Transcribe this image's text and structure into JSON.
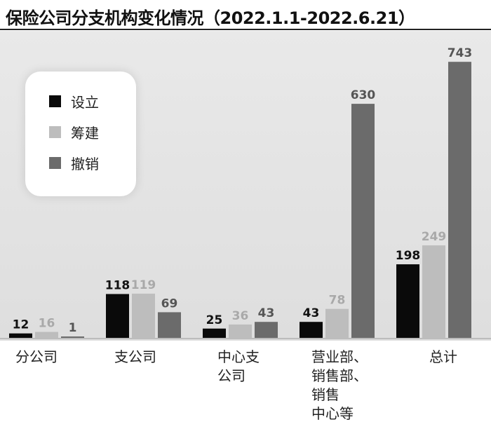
{
  "title": "保险公司分支机构变化情况（2022.1.1-2022.6.21）",
  "colors": {
    "设立": "#0a0a0a",
    "筹建": "#bdbdbd",
    "撤销": "#6b6b6b"
  },
  "legend": {
    "items": [
      {
        "label": "设立",
        "color": "#0a0a0a"
      },
      {
        "label": "筹建",
        "color": "#bdbdbd"
      },
      {
        "label": "撤销",
        "color": "#6b6b6b"
      }
    ]
  },
  "chart_data": {
    "type": "bar",
    "title": "保险公司分支机构变化情况（2022.1.1-2022.6.21）",
    "categories": [
      "分公司",
      "支公司",
      "中心支\n公司",
      "营业部、\n销售部、\n销售\n中心等",
      "总计"
    ],
    "series": [
      {
        "name": "设立",
        "values": [
          12,
          118,
          25,
          43,
          198
        ]
      },
      {
        "name": "筹建",
        "values": [
          16,
          119,
          36,
          78,
          249
        ]
      },
      {
        "name": "撤销",
        "values": [
          1,
          69,
          43,
          630,
          743
        ]
      }
    ],
    "legend_position": "top-left",
    "grid": false
  }
}
